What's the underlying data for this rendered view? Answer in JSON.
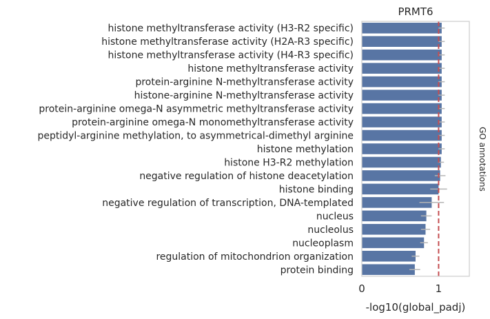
{
  "chart_data": {
    "type": "bar",
    "orientation": "horizontal",
    "title": "PRMT6",
    "xlabel": "-log10(global_padj)",
    "side_label": "GO annotations",
    "xlim": [
      0,
      1.4
    ],
    "xticks": [
      "0",
      "1"
    ],
    "xtick_values": [
      0,
      1
    ],
    "reference_line": 1,
    "bar_color": "#5875a4",
    "reference_color": "#c44e52",
    "errorbar_color": "#b5b5b5",
    "categories": [
      "histone methyltransferase activity (H3-R2 specific)",
      "histone methyltransferase activity (H2A-R3 specific)",
      "histone methyltransferase activity (H4-R3 specific)",
      "histone methyltransferase activity",
      "protein-arginine N-methyltransferase activity",
      "histone-arginine N-methyltransferase activity",
      "protein-arginine omega-N asymmetric methyltransferase activity",
      "protein-arginine omega-N monomethyltransferase activity",
      "peptidyl-arginine methylation, to asymmetrical-dimethyl arginine",
      "histone methylation",
      "histone H3-R2 methylation",
      "negative regulation of histone deacetylation",
      "histone binding",
      "negative regulation of transcription, DNA-templated",
      "nucleus",
      "nucleolus",
      "nucleoplasm",
      "regulation of mitochondrion organization",
      "protein binding"
    ],
    "values": [
      1.04,
      1.04,
      1.04,
      1.04,
      1.04,
      1.04,
      1.04,
      1.04,
      1.04,
      1.04,
      1.03,
      1.02,
      1.0,
      0.91,
      0.84,
      0.83,
      0.81,
      0.7,
      0.69
    ],
    "errors": [
      0.04,
      0.04,
      0.04,
      0.04,
      0.04,
      0.04,
      0.04,
      0.04,
      0.04,
      0.04,
      0.04,
      0.07,
      0.11,
      0.16,
      0.07,
      0.06,
      0.05,
      0.05,
      0.07
    ]
  }
}
